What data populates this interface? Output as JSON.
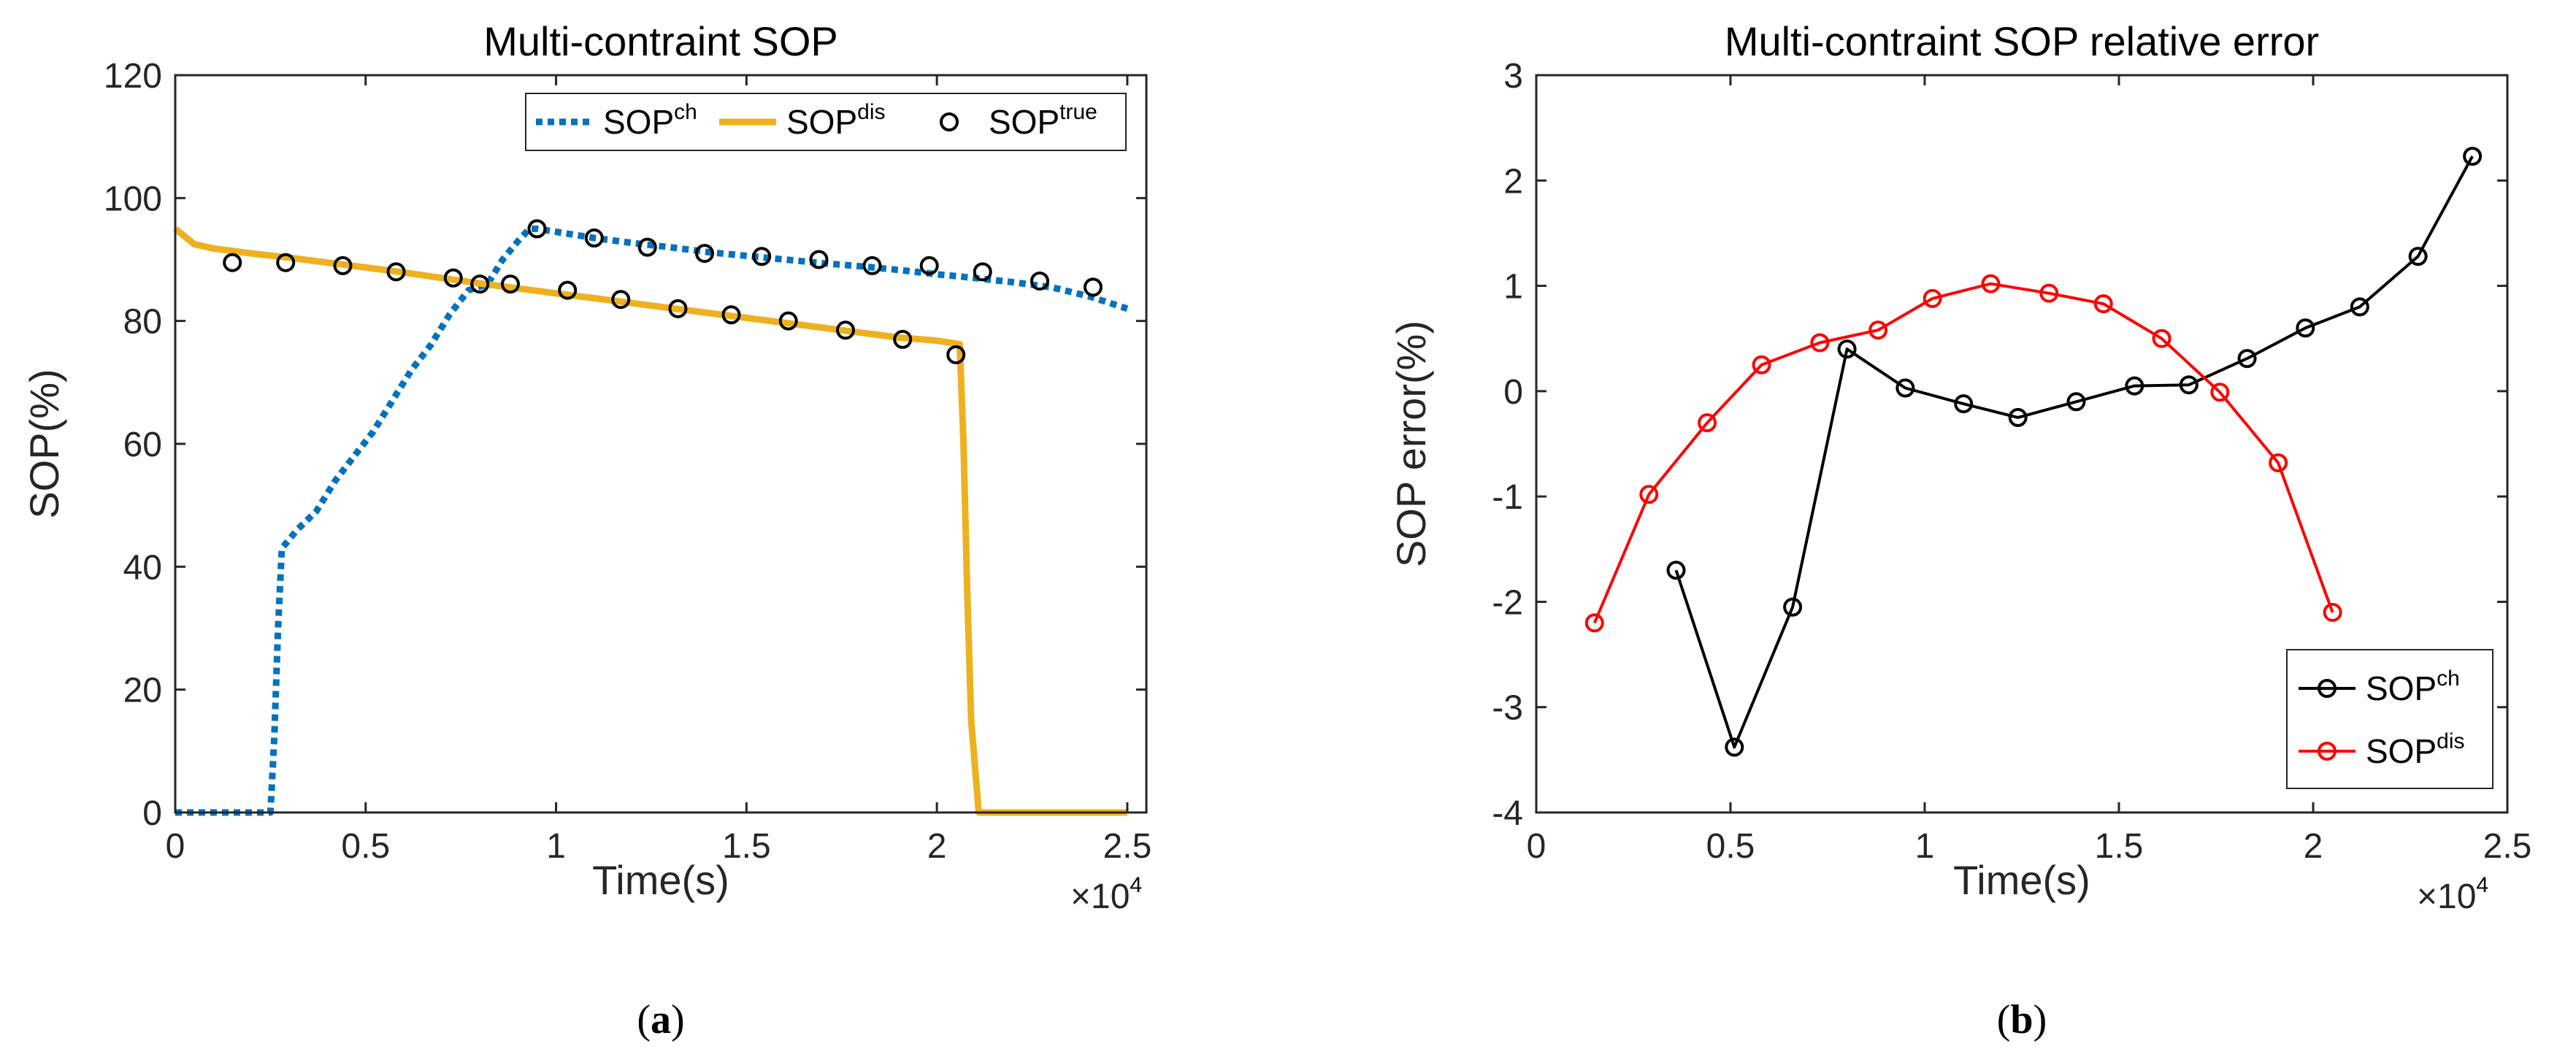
{
  "chart_data": [
    {
      "type": "line",
      "panel_label": "a",
      "title": "Multi-contraint SOP",
      "xlabel": "Time(s)",
      "ylabel": "SOP(%)",
      "x_multiplier": "×10",
      "x_multiplier_exp": "4",
      "xlim": [
        0,
        25500
      ],
      "ylim": [
        0,
        120
      ],
      "xticks": [
        0,
        5000,
        10000,
        15000,
        20000,
        25000
      ],
      "xtick_labels": [
        "0",
        "0.5",
        "1",
        "1.5",
        "2",
        "2.5"
      ],
      "yticks": [
        0,
        20,
        40,
        60,
        80,
        100,
        120
      ],
      "ytick_labels": [
        "0",
        "20",
        "40",
        "60",
        "80",
        "100",
        "120"
      ],
      "legend_position": "top-right",
      "series": [
        {
          "name": "SOP",
          "name_sup": "ch",
          "style": "dotted",
          "color": "#0072BD",
          "x": [
            0,
            2500,
            2600,
            2700,
            2800,
            3200,
            3700,
            4200,
            4700,
            5200,
            5700,
            6200,
            6700,
            7200,
            7700,
            8200,
            8600,
            9000,
            9300,
            9500,
            10000,
            11000,
            12000,
            13000,
            14000,
            15000,
            16000,
            17000,
            18000,
            19000,
            20000,
            21000,
            22000,
            23000,
            24000,
            25000
          ],
          "y": [
            0,
            0,
            12,
            30,
            43,
            46,
            49,
            54,
            58,
            62,
            67,
            72,
            76,
            81,
            85,
            86,
            90,
            93,
            95,
            95,
            94.5,
            93.5,
            92.7,
            92,
            91.2,
            90.6,
            90,
            89.4,
            88.9,
            88.3,
            87.6,
            87,
            86.3,
            85.5,
            84,
            82
          ]
        },
        {
          "name": "SOP",
          "name_sup": "dis",
          "style": "solid",
          "color": "#EDB120",
          "x": [
            0,
            500,
            1000,
            2000,
            3000,
            4000,
            5000,
            6000,
            7000,
            8000,
            9000,
            10000,
            11000,
            12000,
            13000,
            14000,
            15000,
            16000,
            17000,
            18000,
            19000,
            20000,
            20600,
            20700,
            20800,
            20900,
            21100,
            25000
          ],
          "y": [
            95,
            92.5,
            91.8,
            91,
            90.3,
            89.5,
            88.7,
            87.9,
            87,
            86.1,
            85.3,
            84.5,
            83.7,
            82.9,
            82.1,
            81.3,
            80.5,
            79.7,
            78.9,
            78.1,
            77.3,
            76.8,
            76.2,
            60,
            35,
            15,
            0,
            0
          ]
        },
        {
          "name": "SOP",
          "name_sup": "true",
          "style": "markers",
          "color": "#000000",
          "x": [
            1500,
            2900,
            4400,
            5800,
            7300,
            8000,
            8800,
            9500,
            10300,
            11000,
            11700,
            12400,
            13200,
            13900,
            14600,
            15400,
            16100,
            16900,
            17600,
            18300,
            19100,
            19800,
            20500,
            21200,
            22700,
            24100
          ],
          "y": [
            89.5,
            89.5,
            89,
            88,
            87,
            86,
            86,
            95,
            85,
            93.5,
            83.5,
            92,
            82,
            91,
            81,
            90.5,
            80,
            90,
            78.5,
            89,
            77,
            89,
            74.5,
            88,
            86.5,
            85.5
          ]
        }
      ]
    },
    {
      "type": "line",
      "panel_label": "b",
      "title": "Multi-contraint SOP relative error",
      "xlabel": "Time(s)",
      "ylabel": "SOP error(%)",
      "x_multiplier": "×10",
      "x_multiplier_exp": "4",
      "xlim": [
        0,
        25000
      ],
      "ylim": [
        -4,
        3
      ],
      "xticks": [
        0,
        5000,
        10000,
        15000,
        20000,
        25000
      ],
      "xtick_labels": [
        "0",
        "0.5",
        "1",
        "1.5",
        "2",
        "2.5"
      ],
      "yticks": [
        -4,
        -3,
        -2,
        -1,
        0,
        1,
        2,
        3
      ],
      "ytick_labels": [
        "-4",
        "-3",
        "-2",
        "-1",
        "0",
        "1",
        "2",
        "3"
      ],
      "legend_position": "bottom-right",
      "series": [
        {
          "name": "SOP",
          "name_sup": "ch",
          "style": "line-markers",
          "color": "#000000",
          "x": [
            3600,
            5100,
            6600,
            8000,
            9500,
            11000,
            12400,
            13900,
            15400,
            16800,
            18300,
            19800,
            21200,
            22700,
            24100
          ],
          "y": [
            -1.7,
            -3.38,
            -2.05,
            0.4,
            0.03,
            -0.12,
            -0.25,
            -0.1,
            0.05,
            0.06,
            0.31,
            0.6,
            0.8,
            1.28,
            2.23
          ]
        },
        {
          "name": "SOP",
          "name_sup": "dis",
          "style": "line-markers",
          "color": "#FF0000",
          "x": [
            1500,
            2900,
            4400,
            5800,
            7300,
            8800,
            10200,
            11700,
            13200,
            14600,
            16100,
            17600,
            19100,
            20500
          ],
          "y": [
            -2.2,
            -0.98,
            -0.3,
            0.25,
            0.46,
            0.58,
            0.88,
            1.02,
            0.93,
            0.83,
            0.5,
            -0.01,
            -0.68,
            -2.1
          ]
        }
      ]
    }
  ]
}
